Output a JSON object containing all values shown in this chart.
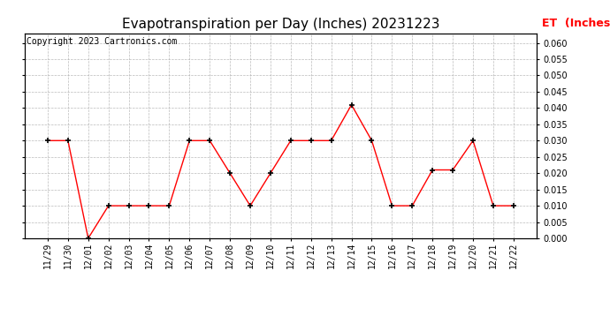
{
  "title": "Evapotranspiration per Day (Inches) 20231223",
  "copyright": "Copyright 2023 Cartronics.com",
  "legend_label": "ET  (Inches)",
  "legend_color": "#ff0000",
  "x_labels": [
    "11/29",
    "11/30",
    "12/01",
    "12/02",
    "12/03",
    "12/04",
    "12/05",
    "12/06",
    "12/07",
    "12/08",
    "12/09",
    "12/10",
    "12/11",
    "12/12",
    "12/13",
    "12/14",
    "12/15",
    "12/16",
    "12/17",
    "12/18",
    "12/19",
    "12/20",
    "12/21",
    "12/22"
  ],
  "y_values": [
    0.03,
    0.03,
    0.0,
    0.01,
    0.01,
    0.01,
    0.01,
    0.03,
    0.03,
    0.02,
    0.01,
    0.02,
    0.03,
    0.03,
    0.03,
    0.041,
    0.03,
    0.01,
    0.01,
    0.021,
    0.021,
    0.03,
    0.01,
    0.01
  ],
  "line_color": "#ff0000",
  "marker_color": "#000000",
  "ylim": [
    0.0,
    0.063
  ],
  "yticks": [
    0.0,
    0.005,
    0.01,
    0.015,
    0.02,
    0.025,
    0.03,
    0.035,
    0.04,
    0.045,
    0.05,
    0.055,
    0.06
  ],
  "bg_color": "#ffffff",
  "grid_color": "#aaaaaa",
  "title_fontsize": 11,
  "copyright_fontsize": 7,
  "legend_fontsize": 9,
  "tick_fontsize": 7
}
